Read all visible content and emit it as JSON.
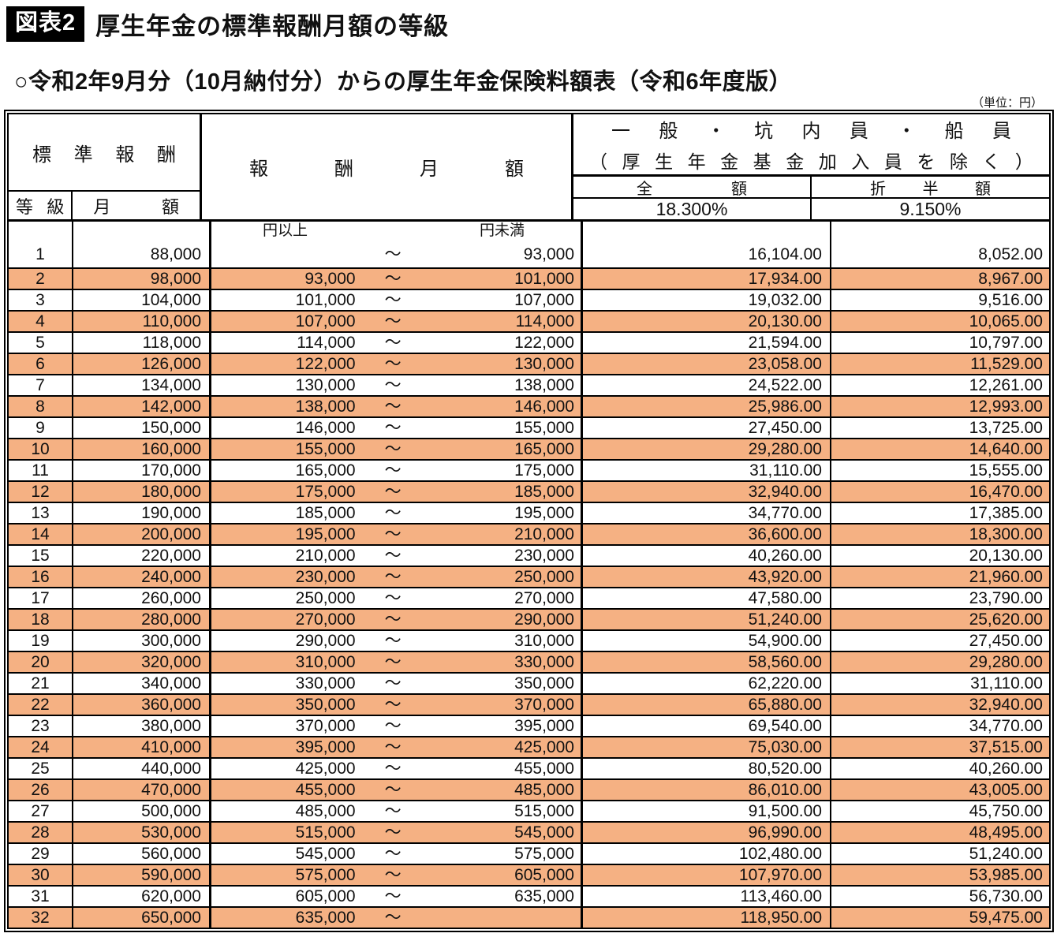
{
  "page": {
    "figure_label": "図表2",
    "title": "厚生年金の標準報酬月額の等級",
    "subtitle": "○令和2年9月分（10月納付分）からの厚生年金保険料額表（令和6年度版）",
    "unit_note": "（単位：円）"
  },
  "table": {
    "tilde": "～",
    "colors": {
      "highlight": "#F5B183",
      "border": "#000000"
    },
    "headers": {
      "standard_remuneration": "標準報酬",
      "grade": "等級",
      "monthly_amount": "月額",
      "remuneration_monthly": "報酬月額",
      "yen_or_more": "円以上",
      "yen_less_than": "円未満",
      "group_line1": "一般・坑内員・船員",
      "group_line2": "（厚生年金基金加入員を除く）",
      "full_amount": "全額",
      "half_amount": "折半額",
      "full_rate": "18.300%",
      "half_rate": "9.150%"
    },
    "rows": [
      {
        "grade": "1",
        "monthly": "88,000",
        "min": "",
        "max": "93,000",
        "full": "16,104.00",
        "half": "8,052.00",
        "hl": false
      },
      {
        "grade": "2",
        "monthly": "98,000",
        "min": "93,000",
        "max": "101,000",
        "full": "17,934.00",
        "half": "8,967.00",
        "hl": true
      },
      {
        "grade": "3",
        "monthly": "104,000",
        "min": "101,000",
        "max": "107,000",
        "full": "19,032.00",
        "half": "9,516.00",
        "hl": false
      },
      {
        "grade": "4",
        "monthly": "110,000",
        "min": "107,000",
        "max": "114,000",
        "full": "20,130.00",
        "half": "10,065.00",
        "hl": true
      },
      {
        "grade": "5",
        "monthly": "118,000",
        "min": "114,000",
        "max": "122,000",
        "full": "21,594.00",
        "half": "10,797.00",
        "hl": false
      },
      {
        "grade": "6",
        "monthly": "126,000",
        "min": "122,000",
        "max": "130,000",
        "full": "23,058.00",
        "half": "11,529.00",
        "hl": true
      },
      {
        "grade": "7",
        "monthly": "134,000",
        "min": "130,000",
        "max": "138,000",
        "full": "24,522.00",
        "half": "12,261.00",
        "hl": false
      },
      {
        "grade": "8",
        "monthly": "142,000",
        "min": "138,000",
        "max": "146,000",
        "full": "25,986.00",
        "half": "12,993.00",
        "hl": true
      },
      {
        "grade": "9",
        "monthly": "150,000",
        "min": "146,000",
        "max": "155,000",
        "full": "27,450.00",
        "half": "13,725.00",
        "hl": false
      },
      {
        "grade": "10",
        "monthly": "160,000",
        "min": "155,000",
        "max": "165,000",
        "full": "29,280.00",
        "half": "14,640.00",
        "hl": true
      },
      {
        "grade": "11",
        "monthly": "170,000",
        "min": "165,000",
        "max": "175,000",
        "full": "31,110.00",
        "half": "15,555.00",
        "hl": false
      },
      {
        "grade": "12",
        "monthly": "180,000",
        "min": "175,000",
        "max": "185,000",
        "full": "32,940.00",
        "half": "16,470.00",
        "hl": true
      },
      {
        "grade": "13",
        "monthly": "190,000",
        "min": "185,000",
        "max": "195,000",
        "full": "34,770.00",
        "half": "17,385.00",
        "hl": false
      },
      {
        "grade": "14",
        "monthly": "200,000",
        "min": "195,000",
        "max": "210,000",
        "full": "36,600.00",
        "half": "18,300.00",
        "hl": true
      },
      {
        "grade": "15",
        "monthly": "220,000",
        "min": "210,000",
        "max": "230,000",
        "full": "40,260.00",
        "half": "20,130.00",
        "hl": false
      },
      {
        "grade": "16",
        "monthly": "240,000",
        "min": "230,000",
        "max": "250,000",
        "full": "43,920.00",
        "half": "21,960.00",
        "hl": true
      },
      {
        "grade": "17",
        "monthly": "260,000",
        "min": "250,000",
        "max": "270,000",
        "full": "47,580.00",
        "half": "23,790.00",
        "hl": false
      },
      {
        "grade": "18",
        "monthly": "280,000",
        "min": "270,000",
        "max": "290,000",
        "full": "51,240.00",
        "half": "25,620.00",
        "hl": true
      },
      {
        "grade": "19",
        "monthly": "300,000",
        "min": "290,000",
        "max": "310,000",
        "full": "54,900.00",
        "half": "27,450.00",
        "hl": false
      },
      {
        "grade": "20",
        "monthly": "320,000",
        "min": "310,000",
        "max": "330,000",
        "full": "58,560.00",
        "half": "29,280.00",
        "hl": true
      },
      {
        "grade": "21",
        "monthly": "340,000",
        "min": "330,000",
        "max": "350,000",
        "full": "62,220.00",
        "half": "31,110.00",
        "hl": false
      },
      {
        "grade": "22",
        "monthly": "360,000",
        "min": "350,000",
        "max": "370,000",
        "full": "65,880.00",
        "half": "32,940.00",
        "hl": true
      },
      {
        "grade": "23",
        "monthly": "380,000",
        "min": "370,000",
        "max": "395,000",
        "full": "69,540.00",
        "half": "34,770.00",
        "hl": false
      },
      {
        "grade": "24",
        "monthly": "410,000",
        "min": "395,000",
        "max": "425,000",
        "full": "75,030.00",
        "half": "37,515.00",
        "hl": true
      },
      {
        "grade": "25",
        "monthly": "440,000",
        "min": "425,000",
        "max": "455,000",
        "full": "80,520.00",
        "half": "40,260.00",
        "hl": false
      },
      {
        "grade": "26",
        "monthly": "470,000",
        "min": "455,000",
        "max": "485,000",
        "full": "86,010.00",
        "half": "43,005.00",
        "hl": true
      },
      {
        "grade": "27",
        "monthly": "500,000",
        "min": "485,000",
        "max": "515,000",
        "full": "91,500.00",
        "half": "45,750.00",
        "hl": false
      },
      {
        "grade": "28",
        "monthly": "530,000",
        "min": "515,000",
        "max": "545,000",
        "full": "96,990.00",
        "half": "48,495.00",
        "hl": true
      },
      {
        "grade": "29",
        "monthly": "560,000",
        "min": "545,000",
        "max": "575,000",
        "full": "102,480.00",
        "half": "51,240.00",
        "hl": false
      },
      {
        "grade": "30",
        "monthly": "590,000",
        "min": "575,000",
        "max": "605,000",
        "full": "107,970.00",
        "half": "53,985.00",
        "hl": true
      },
      {
        "grade": "31",
        "monthly": "620,000",
        "min": "605,000",
        "max": "635,000",
        "full": "113,460.00",
        "half": "56,730.00",
        "hl": false
      },
      {
        "grade": "32",
        "monthly": "650,000",
        "min": "635,000",
        "max": "",
        "full": "118,950.00",
        "half": "59,475.00",
        "hl": true
      }
    ]
  }
}
